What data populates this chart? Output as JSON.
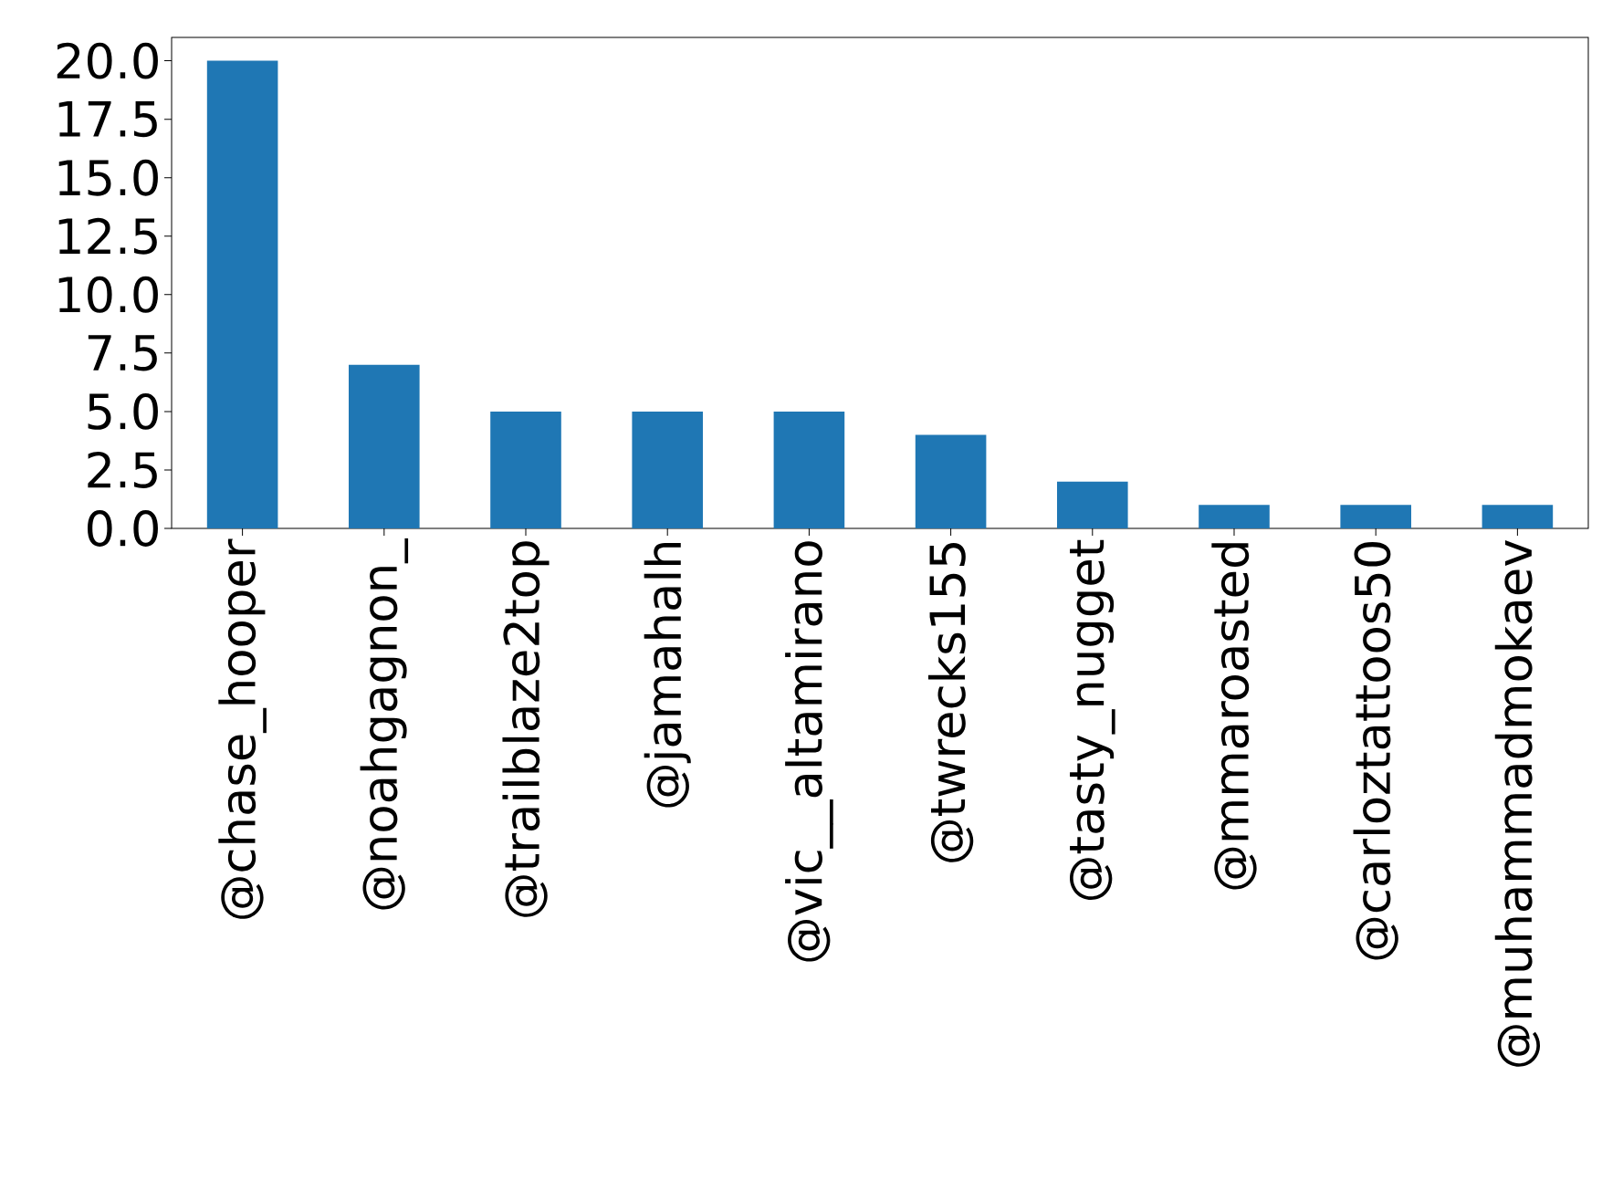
{
  "chart_data": {
    "type": "bar",
    "categories": [
      "@chase_hooper",
      "@noahgagnon_",
      "@trailblaze2top",
      "@jamahalh",
      "@vic__altamirano",
      "@twrecks155",
      "@tasty_nugget",
      "@mmaroasted",
      "@carloztattoos50",
      "@muhammadmokaev"
    ],
    "values": [
      20,
      7,
      5,
      5,
      5,
      4,
      2,
      1,
      1,
      1
    ],
    "color": "#1f77b4",
    "ylim": [
      0,
      21
    ],
    "yticks": [
      {
        "value": 0,
        "label": "0.0"
      },
      {
        "value": 2.5,
        "label": "2.5"
      },
      {
        "value": 5,
        "label": "5.0"
      },
      {
        "value": 7.5,
        "label": "7.5"
      },
      {
        "value": 10,
        "label": "10.0"
      },
      {
        "value": 12.5,
        "label": "12.5"
      },
      {
        "value": 15,
        "label": "15.0"
      },
      {
        "value": 17.5,
        "label": "17.5"
      },
      {
        "value": 20,
        "label": "20.0"
      }
    ],
    "grid": false
  }
}
